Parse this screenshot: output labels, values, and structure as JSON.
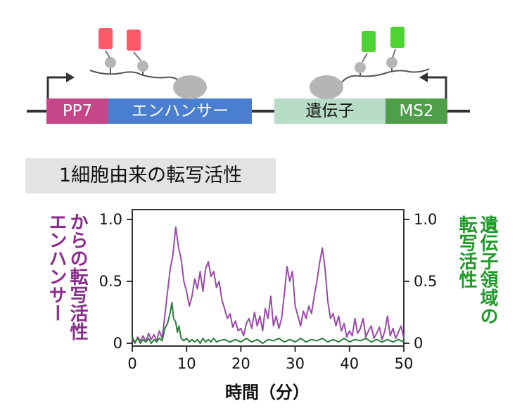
{
  "diagram": {
    "segments": {
      "pp7": {
        "label": "PP7",
        "color": "#c6468a"
      },
      "enhancer": {
        "label": "エンハンサー",
        "color": "#4a7fcf"
      },
      "gene": {
        "label": "遺伝子",
        "color": "#b8ddc7"
      },
      "ms2": {
        "label": "MS2",
        "color": "#4f9e4a"
      }
    },
    "colors": {
      "pp7_protein": "#ff5a6a",
      "ms2_protein": "#4fd332",
      "polymerase": "#b5b5b5",
      "dna": "#333333"
    }
  },
  "title": "1細胞由来の転写活性",
  "chart_data": {
    "type": "line",
    "xlabel": "時間（分）",
    "xlim": [
      0,
      50
    ],
    "xticks": [
      0,
      10,
      20,
      30,
      40,
      50
    ],
    "ylim_left": [
      0,
      1.0
    ],
    "ylim_right": [
      0,
      1.0
    ],
    "yticks_left": [
      "0",
      "0.5",
      "1.0"
    ],
    "yticks_right": [
      "0",
      "0.5",
      "1.0"
    ],
    "ylabel_left": [
      "エンハンサー",
      "からの転写活性"
    ],
    "ylabel_right": [
      "遺伝子領域の",
      "転写活性"
    ],
    "series": [
      {
        "color": "#9a4aa8",
        "axis": "left",
        "points": [
          [
            0,
            0.03
          ],
          [
            0.5,
            0.0
          ],
          [
            1.0,
            0.05
          ],
          [
            1.5,
            0.02
          ],
          [
            2.0,
            0.06
          ],
          [
            2.5,
            0.01
          ],
          [
            3.0,
            0.08
          ],
          [
            3.5,
            0.03
          ],
          [
            4.0,
            0.07
          ],
          [
            4.5,
            0.02
          ],
          [
            5.0,
            0.1
          ],
          [
            5.5,
            0.04
          ],
          [
            6.0,
            0.22
          ],
          [
            6.5,
            0.42
          ],
          [
            7.0,
            0.6
          ],
          [
            7.5,
            0.72
          ],
          [
            8.0,
            0.94
          ],
          [
            8.5,
            0.78
          ],
          [
            9.0,
            0.68
          ],
          [
            9.5,
            0.5
          ],
          [
            10.0,
            0.42
          ],
          [
            10.5,
            0.3
          ],
          [
            11.0,
            0.38
          ],
          [
            11.5,
            0.52
          ],
          [
            12.0,
            0.44
          ],
          [
            12.5,
            0.58
          ],
          [
            13.0,
            0.42
          ],
          [
            13.5,
            0.6
          ],
          [
            14.0,
            0.66
          ],
          [
            14.5,
            0.54
          ],
          [
            15.0,
            0.58
          ],
          [
            15.5,
            0.45
          ],
          [
            16.0,
            0.5
          ],
          [
            16.5,
            0.35
          ],
          [
            17.0,
            0.28
          ],
          [
            17.5,
            0.2
          ],
          [
            18.0,
            0.24
          ],
          [
            18.5,
            0.13
          ],
          [
            19.0,
            0.18
          ],
          [
            19.5,
            0.1
          ],
          [
            20.0,
            0.12
          ],
          [
            20.5,
            0.06
          ],
          [
            21.0,
            0.16
          ],
          [
            21.5,
            0.2
          ],
          [
            22.0,
            0.12
          ],
          [
            22.5,
            0.25
          ],
          [
            23.0,
            0.14
          ],
          [
            23.5,
            0.22
          ],
          [
            24.0,
            0.1
          ],
          [
            24.5,
            0.28
          ],
          [
            25.0,
            0.2
          ],
          [
            25.5,
            0.38
          ],
          [
            26.0,
            0.14
          ],
          [
            26.5,
            0.22
          ],
          [
            27.0,
            0.12
          ],
          [
            27.5,
            0.2
          ],
          [
            28.0,
            0.4
          ],
          [
            28.5,
            0.62
          ],
          [
            29.0,
            0.5
          ],
          [
            29.5,
            0.58
          ],
          [
            30.0,
            0.3
          ],
          [
            30.5,
            0.22
          ],
          [
            31.0,
            0.14
          ],
          [
            31.5,
            0.26
          ],
          [
            32.0,
            0.2
          ],
          [
            32.5,
            0.3
          ],
          [
            33.0,
            0.24
          ],
          [
            33.5,
            0.38
          ],
          [
            34.0,
            0.5
          ],
          [
            34.5,
            0.65
          ],
          [
            35.0,
            0.77
          ],
          [
            35.5,
            0.6
          ],
          [
            36.0,
            0.34
          ],
          [
            36.5,
            0.2
          ],
          [
            37.0,
            0.24
          ],
          [
            37.5,
            0.14
          ],
          [
            38.0,
            0.22
          ],
          [
            38.5,
            0.1
          ],
          [
            39.0,
            0.16
          ],
          [
            39.5,
            0.05
          ],
          [
            40.0,
            0.1
          ],
          [
            40.5,
            0.06
          ],
          [
            41.0,
            0.2
          ],
          [
            41.5,
            0.08
          ],
          [
            42.0,
            0.12
          ],
          [
            42.5,
            0.2
          ],
          [
            43.0,
            0.05
          ],
          [
            43.5,
            0.1
          ],
          [
            44.0,
            0.14
          ],
          [
            44.5,
            0.04
          ],
          [
            45.0,
            0.08
          ],
          [
            45.5,
            0.13
          ],
          [
            46.0,
            0.03
          ],
          [
            46.5,
            0.1
          ],
          [
            47.0,
            0.22
          ],
          [
            47.5,
            0.06
          ],
          [
            48.0,
            0.12
          ],
          [
            48.5,
            0.04
          ],
          [
            49.0,
            0.09
          ],
          [
            49.5,
            0.14
          ],
          [
            50.0,
            0.04
          ]
        ]
      },
      {
        "color": "#2a7d3a",
        "axis": "right",
        "points": [
          [
            0,
            0.05
          ],
          [
            0.5,
            0.01
          ],
          [
            1.0,
            0.04
          ],
          [
            1.5,
            0.0
          ],
          [
            2.0,
            0.03
          ],
          [
            2.5,
            0.01
          ],
          [
            3.0,
            0.04
          ],
          [
            3.5,
            0.0
          ],
          [
            4.0,
            0.03
          ],
          [
            4.5,
            0.01
          ],
          [
            5.0,
            0.04
          ],
          [
            5.5,
            0.02
          ],
          [
            6.0,
            0.12
          ],
          [
            6.5,
            0.16
          ],
          [
            7.0,
            0.25
          ],
          [
            7.3,
            0.33
          ],
          [
            7.6,
            0.2
          ],
          [
            8.0,
            0.17
          ],
          [
            8.3,
            0.09
          ],
          [
            8.6,
            0.14
          ],
          [
            9.0,
            0.04
          ],
          [
            9.5,
            0.02
          ],
          [
            10.0,
            0.04
          ],
          [
            10.5,
            0.01
          ],
          [
            11.0,
            0.03
          ],
          [
            11.5,
            0.01
          ],
          [
            12.0,
            0.03
          ],
          [
            12.5,
            0.0
          ],
          [
            13.0,
            0.04
          ],
          [
            13.5,
            0.01
          ],
          [
            14.0,
            0.03
          ],
          [
            14.5,
            0.01
          ],
          [
            15.0,
            0.04
          ],
          [
            15.5,
            0.01
          ],
          [
            16.0,
            0.02
          ],
          [
            17.0,
            0.03
          ],
          [
            18.0,
            0.01
          ],
          [
            19.0,
            0.03
          ],
          [
            20.0,
            0.01
          ],
          [
            21.0,
            0.04
          ],
          [
            22.0,
            0.01
          ],
          [
            23.0,
            0.03
          ],
          [
            24.0,
            0.0
          ],
          [
            25.0,
            0.03
          ],
          [
            26.0,
            0.02
          ],
          [
            27.0,
            0.04
          ],
          [
            28.0,
            0.01
          ],
          [
            29.0,
            0.03
          ],
          [
            30.0,
            0.01
          ],
          [
            31.0,
            0.04
          ],
          [
            32.0,
            0.01
          ],
          [
            33.0,
            0.03
          ],
          [
            34.0,
            0.02
          ],
          [
            35.0,
            0.04
          ],
          [
            36.0,
            0.01
          ],
          [
            37.0,
            0.03
          ],
          [
            38.0,
            0.01
          ],
          [
            39.0,
            0.04
          ],
          [
            40.0,
            0.01
          ],
          [
            41.0,
            0.03
          ],
          [
            42.0,
            0.02
          ],
          [
            43.0,
            0.04
          ],
          [
            44.0,
            0.01
          ],
          [
            45.0,
            0.03
          ],
          [
            46.0,
            0.01
          ],
          [
            47.0,
            0.03
          ],
          [
            48.0,
            0.01
          ],
          [
            49.0,
            0.03
          ],
          [
            50.0,
            0.01
          ]
        ]
      }
    ]
  }
}
